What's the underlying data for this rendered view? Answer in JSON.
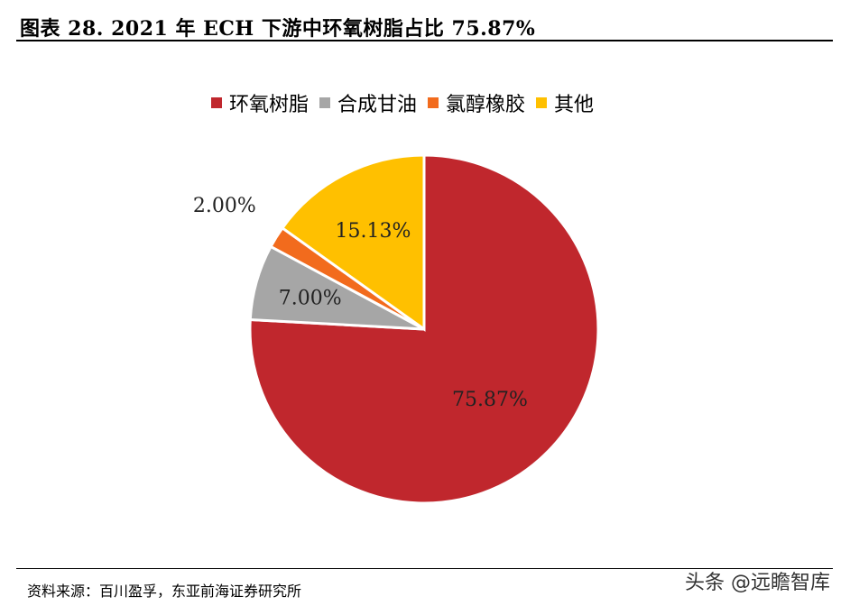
{
  "title": "图表 28. 2021 年 ECH 下游中环氧树脂占比 75.87%",
  "source": "资料来源：百川盈孚，东亚前海证券研究所",
  "watermark": "头条 @远瞻智库",
  "chart_data": {
    "type": "pie",
    "title": "",
    "legend_position": "top",
    "slices": [
      {
        "label": "环氧树脂",
        "value": 75.87,
        "value_label": "75.87%",
        "color": "#c0272d"
      },
      {
        "label": "合成甘油",
        "value": 7.0,
        "value_label": "7.00%",
        "color": "#a6a6a6"
      },
      {
        "label": "氯醇橡胶",
        "value": 2.0,
        "value_label": "2.00%",
        "color": "#f26b1d"
      },
      {
        "label": "其他",
        "value": 15.13,
        "value_label": "15.13%",
        "color": "#ffc000"
      }
    ]
  }
}
